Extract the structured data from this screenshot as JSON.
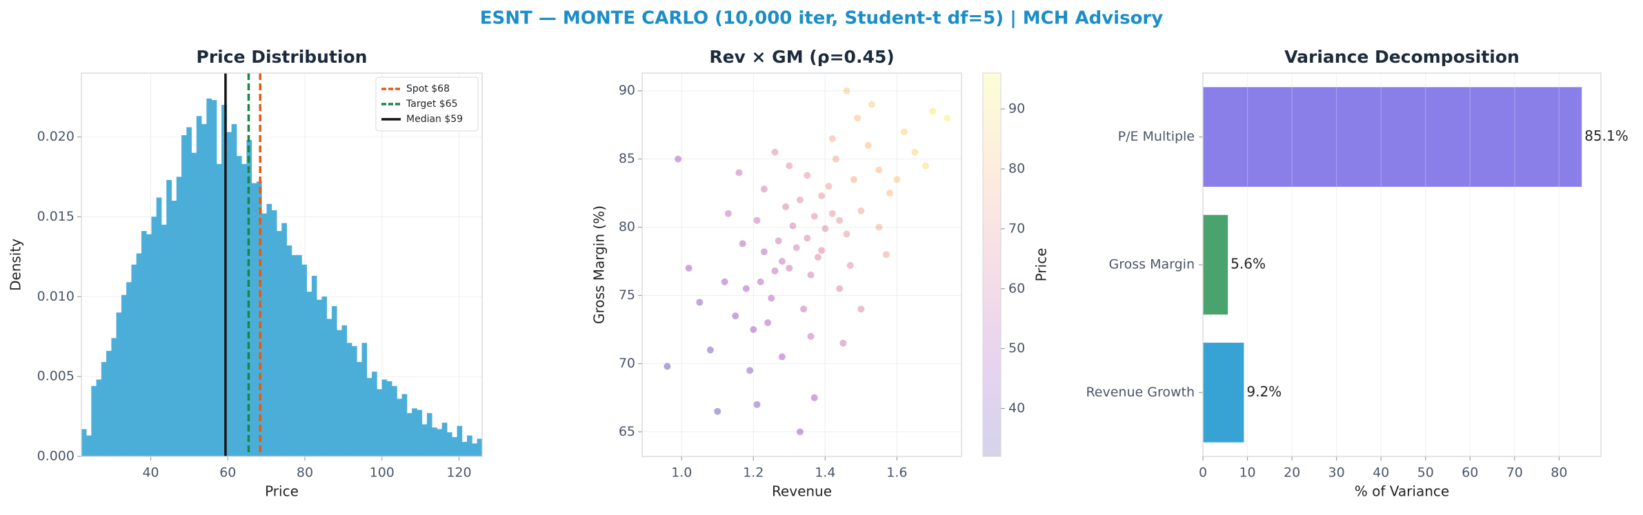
{
  "title": "ESNT — MONTE CARLO (10,000 iter, Student-t df=5) | MCH Advisory",
  "chart_data": [
    {
      "type": "histogram",
      "title": "Price Distribution",
      "xlabel": "Price",
      "ylabel": "Density",
      "bins": [
        22,
        23.3,
        24.6,
        25.9,
        27.2,
        28.5,
        29.8,
        31.1,
        32.4,
        33.7,
        35,
        36.3,
        37.6,
        38.9,
        40.2,
        41.5,
        42.8,
        44.1,
        45.4,
        46.7,
        48,
        49.3,
        50.6,
        51.9,
        53.2,
        54.5,
        55.8,
        57.1,
        58.4,
        59.7,
        61,
        62.3,
        63.6,
        64.9,
        66.2,
        67.5,
        68.8,
        70.1,
        71.4,
        72.7,
        74,
        75.3,
        76.6,
        77.9,
        79.2,
        80.5,
        81.8,
        83.1,
        84.4,
        85.7,
        87,
        88.3,
        89.6,
        90.9,
        92.2,
        93.5,
        94.8,
        96.1,
        97.4,
        98.7,
        100,
        101.3,
        102.6,
        103.9,
        105.2,
        106.5,
        107.8,
        109.1,
        110.4,
        111.7,
        113,
        114.3,
        115.6,
        116.9,
        118.2,
        119.5,
        120.8,
        122.1,
        123.4,
        124.7,
        126
      ],
      "counts": [
        0.0017,
        0.0013,
        0.0044,
        0.0048,
        0.0059,
        0.0066,
        0.0074,
        0.009,
        0.0101,
        0.0109,
        0.012,
        0.0127,
        0.0141,
        0.0139,
        0.015,
        0.0162,
        0.0145,
        0.0173,
        0.016,
        0.0175,
        0.0201,
        0.0206,
        0.019,
        0.0213,
        0.0208,
        0.0224,
        0.0223,
        0.0183,
        0.022,
        0.0203,
        0.0208,
        0.0188,
        0.0183,
        0.0198,
        0.0171,
        0.0172,
        0.0152,
        0.0158,
        0.0154,
        0.0141,
        0.0146,
        0.0132,
        0.0126,
        0.0126,
        0.012,
        0.0103,
        0.0113,
        0.0098,
        0.01,
        0.0086,
        0.0094,
        0.0079,
        0.0082,
        0.0071,
        0.0069,
        0.0059,
        0.0071,
        0.0049,
        0.0053,
        0.0042,
        0.0048,
        0.0047,
        0.0044,
        0.0036,
        0.0039,
        0.0027,
        0.003,
        0.0029,
        0.002,
        0.0027,
        0.0018,
        0.0017,
        0.0021,
        0.0015,
        0.0012,
        0.0019,
        0.0009,
        0.0013,
        0.0008,
        0.0011
      ],
      "color": "#4aaed9",
      "xlim": [
        22,
        126
      ],
      "ylim": [
        0,
        0.024
      ],
      "xticks": [
        40,
        60,
        80,
        100,
        120
      ],
      "yticks": [
        {
          "value": 0,
          "label": "0.000"
        },
        {
          "value": 0.005,
          "label": "0.005"
        },
        {
          "value": 0.01,
          "label": "0.010"
        },
        {
          "value": 0.015,
          "label": "0.015"
        },
        {
          "value": 0.02,
          "label": "0.020"
        }
      ],
      "grid": true,
      "legend": "upper right",
      "vlines": [
        {
          "name": "Spot $68",
          "value": 68.4,
          "color": "#e8590c",
          "style": "dashed"
        },
        {
          "name": "Target $65",
          "value": 65.4,
          "color": "#14893f",
          "style": "dashed"
        },
        {
          "name": "Median $59",
          "value": 59.4,
          "color": "#111111",
          "style": "solid"
        }
      ]
    },
    {
      "type": "scatter",
      "title": "Rev × GM (ρ=0.45)",
      "xlabel": "Revenue",
      "ylabel": "Gross Margin (%)",
      "x": [
        1.35,
        1.28,
        1.42,
        1.22,
        1.48,
        1.31,
        1.25,
        1.39,
        1.18,
        1.55,
        1.44,
        1.33,
        1.27,
        1.36,
        1.52,
        1.2,
        1.41,
        1.3,
        1.37,
        1.46,
        1.23,
        1.58,
        1.15,
        1.34,
        1.29,
        1.43,
        1.38,
        1.26,
        1.5,
        1.12,
        1.62,
        1.32,
        1.4,
        1.21,
        1.47,
        1.35,
        1.08,
        1.24,
        1.55,
        1.44,
        1.3,
        1.17,
        1.65,
        1.36,
        1.28,
        1.49,
        1.05,
        1.39,
        1.19,
        1.7,
        0.96,
        1.13,
        1.45,
        1.6,
        1.26,
        1.37,
        1.02,
        1.53,
        1.1,
        1.42,
        1.57,
        1.23,
        1.33,
        1.68,
        0.99,
        1.5,
        1.16,
        1.46,
        1.74,
        1.21
      ],
      "y": [
        79.2,
        77.5,
        81.0,
        76.0,
        83.5,
        80.1,
        74.8,
        78.3,
        75.5,
        84.2,
        80.5,
        82.0,
        79.0,
        76.5,
        86.0,
        72.5,
        83.0,
        77.0,
        80.8,
        79.5,
        78.2,
        82.5,
        73.5,
        74.0,
        81.5,
        85.0,
        77.8,
        76.8,
        81.2,
        76.0,
        87.0,
        78.5,
        79.9,
        80.5,
        77.2,
        83.8,
        71.0,
        73.0,
        80.0,
        75.5,
        84.5,
        78.8,
        85.5,
        72.0,
        70.5,
        88.0,
        74.5,
        82.3,
        69.5,
        88.5,
        69.8,
        81.0,
        71.5,
        83.5,
        85.5,
        67.5,
        77.0,
        89.0,
        66.5,
        86.5,
        78.0,
        82.8,
        65.0,
        84.5,
        85.0,
        74.0,
        84.0,
        90.0,
        88.0,
        67.0
      ],
      "c": [
        62,
        56,
        69,
        51,
        75,
        61,
        51,
        63,
        48,
        78,
        69,
        65,
        58,
        60,
        80,
        45,
        71,
        57,
        65,
        69,
        53,
        79,
        44,
        55,
        62,
        74,
        63,
        54,
        73,
        47,
        86,
        60,
        65,
        56,
        66,
        68,
        38,
        49,
        75,
        63,
        66,
        51,
        87,
        55,
        48,
        81,
        41,
        68,
        41,
        92,
        34,
        55,
        59,
        82,
        64,
        48,
        45,
        84,
        35,
        76,
        73,
        60,
        44,
        89,
        49,
        64,
        57,
        83,
        94,
        40
      ],
      "colormap": "plasma",
      "alpha": 0.35,
      "clim": [
        32,
        96
      ],
      "cticks": [
        40,
        50,
        60,
        70,
        80,
        90
      ],
      "clabel": "Price",
      "xlim": [
        0.89,
        1.78
      ],
      "ylim": [
        63.2,
        91.3
      ],
      "xticks": [
        {
          "value": 1,
          "label": "1.0"
        },
        1.2,
        1.4,
        1.6
      ],
      "yticks": [
        65,
        70,
        75,
        80,
        85,
        90
      ],
      "grid": true
    },
    {
      "type": "barh",
      "title": "Variance Decomposition",
      "xlabel": "% of Variance",
      "categories": [
        "P/E Multiple",
        "Gross Margin",
        "Revenue Growth"
      ],
      "values": [
        85.1,
        5.6,
        9.2
      ],
      "value_labels": [
        "85.1%",
        "5.6%",
        "9.2%"
      ],
      "colors": [
        "#8a7fe8",
        "#4aa36c",
        "#36a3d4"
      ],
      "xlim": [
        0,
        89.4
      ],
      "xticks": [
        0,
        10,
        20,
        30,
        40,
        50,
        60,
        70,
        80
      ],
      "grid": true
    }
  ]
}
